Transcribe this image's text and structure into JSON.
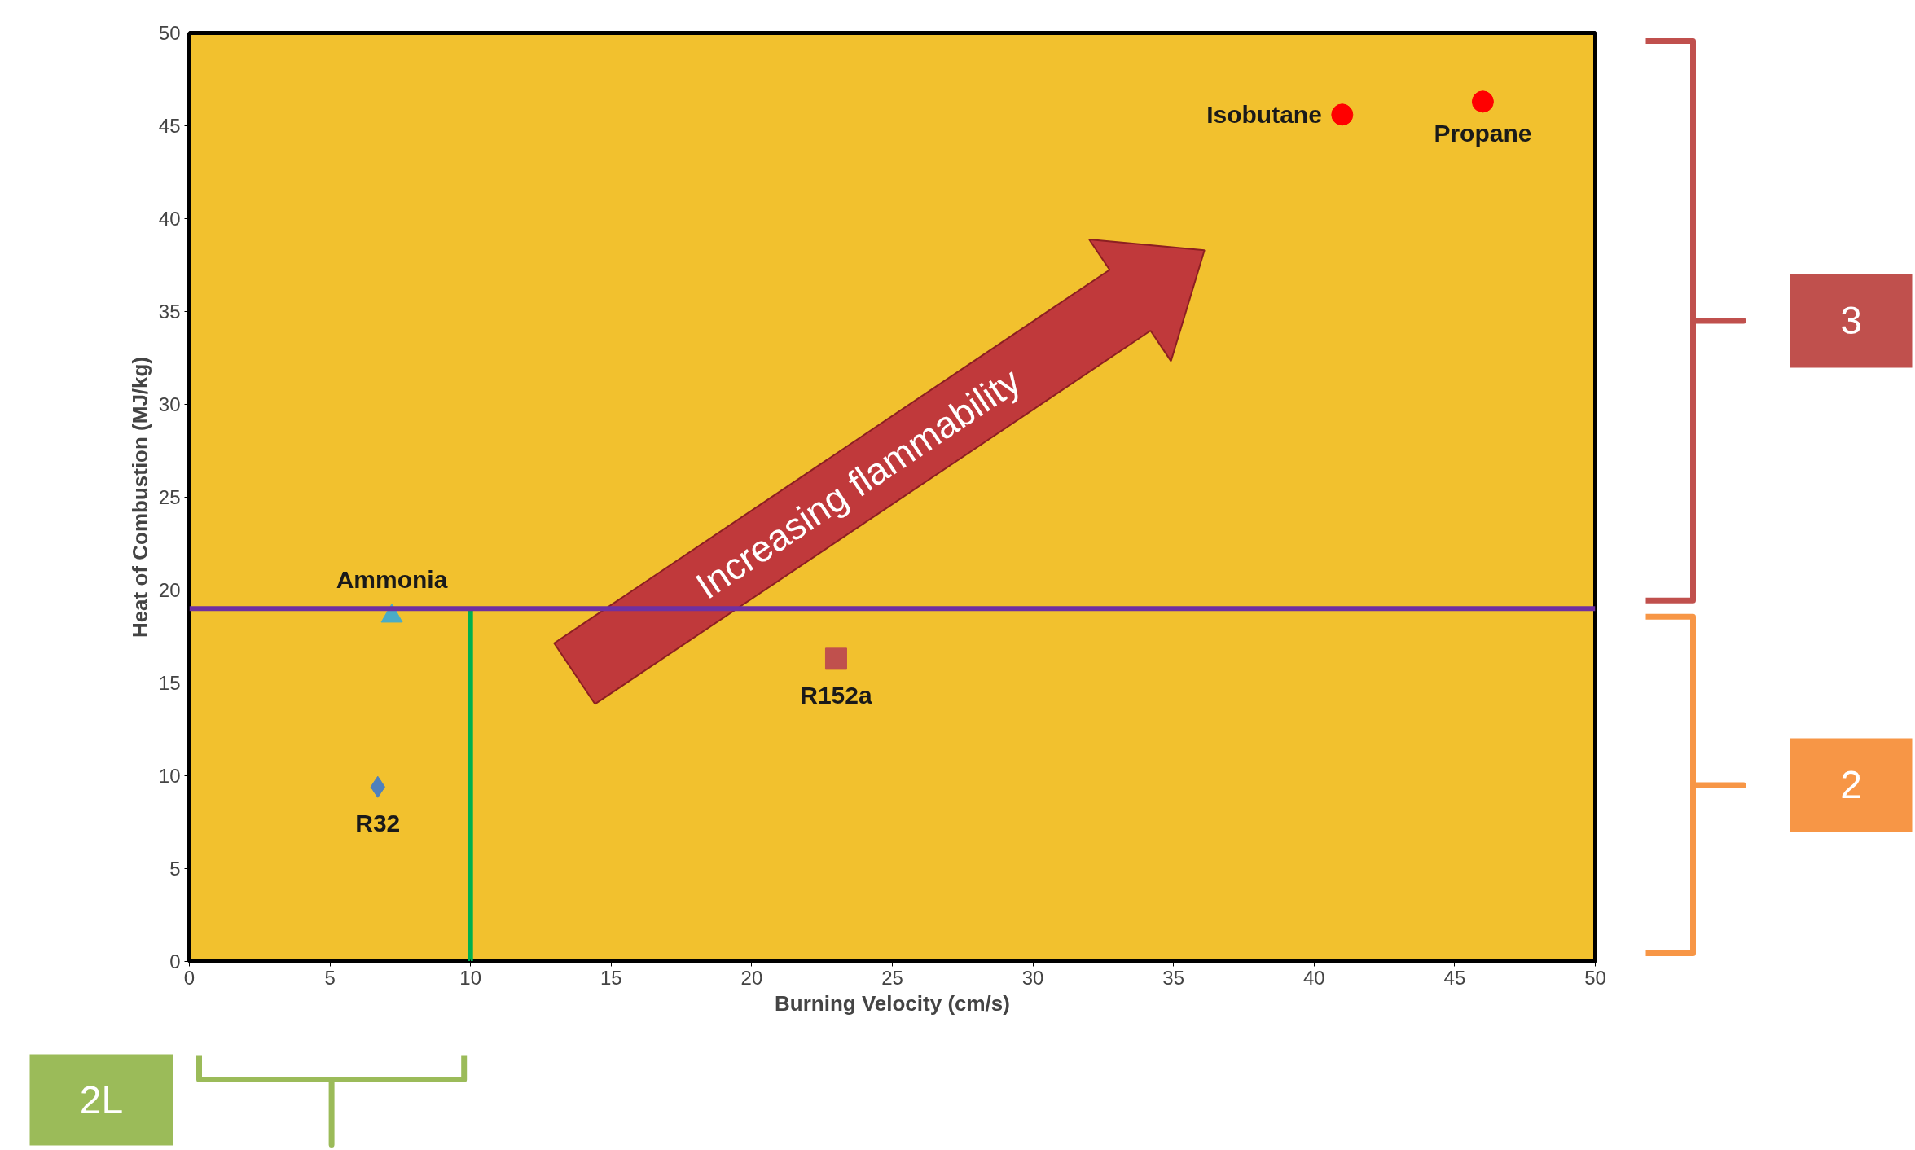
{
  "chart_data": {
    "type": "scatter",
    "xlabel": "Burning Velocity (cm/s)",
    "ylabel": "Heat of Combustion (MJ/kg)",
    "xlim": [
      0,
      50
    ],
    "ylim": [
      0,
      50
    ],
    "xticks": [
      0,
      5,
      10,
      15,
      20,
      25,
      30,
      35,
      40,
      45,
      50
    ],
    "yticks": [
      0,
      5,
      10,
      15,
      20,
      25,
      30,
      35,
      40,
      45,
      50
    ],
    "series": [
      {
        "name": "R32",
        "color": "#4f81bd",
        "marker": "diamond",
        "x": [
          6.7
        ],
        "values": [
          9.4
        ]
      },
      {
        "name": "Ammonia",
        "color": "#4bacc6",
        "marker": "triangle",
        "x": [
          7.2
        ],
        "values": [
          18.6
        ]
      },
      {
        "name": "R152a",
        "color": "#c0504d",
        "marker": "square",
        "x": [
          23
        ],
        "values": [
          16.3
        ]
      },
      {
        "name": "Isobutane",
        "color": "#ff0000",
        "marker": "circle",
        "x": [
          41
        ],
        "values": [
          45.6
        ]
      },
      {
        "name": "Propane",
        "color": "#ff0000",
        "marker": "circle",
        "x": [
          46
        ],
        "values": [
          46.3
        ]
      },
      {
        "type": "line",
        "color": "#00b050",
        "x": [
          10,
          10
        ],
        "values": [
          0,
          19
        ]
      }
    ],
    "ref_lines": [
      {
        "axis": "y",
        "value": 19,
        "color": "#7030a0"
      }
    ],
    "annotations": [
      "Increasing flammability",
      "3",
      "2",
      "2L"
    ]
  }
}
